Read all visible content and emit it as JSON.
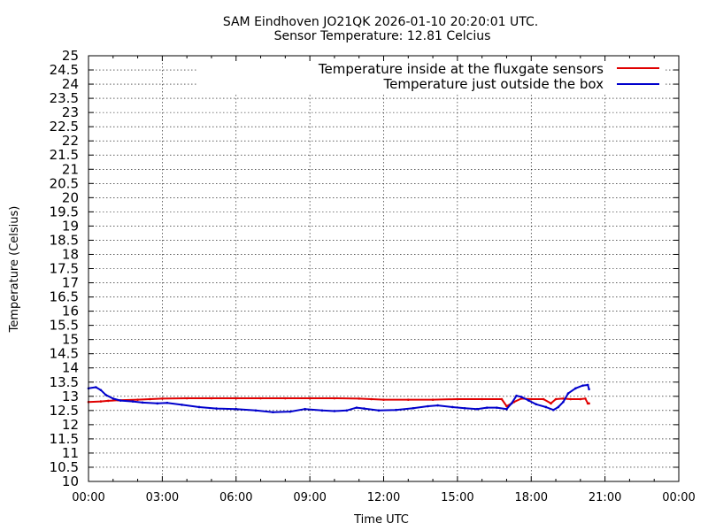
{
  "chart_data": {
    "type": "line",
    "title": "SAM Eindhoven JO21QK 2026-01-10 20:20:01 UTC.",
    "subtitle": "Sensor Temperature: 12.81 Celcius",
    "xlabel": "Time UTC",
    "ylabel": "Temperature (Celsius)",
    "x_unit": "hours",
    "xlim": [
      0,
      24
    ],
    "ylim": [
      10,
      25
    ],
    "grid": true,
    "legend_position": "top-right",
    "x_ticks": [
      "00:00",
      "03:00",
      "06:00",
      "09:00",
      "12:00",
      "15:00",
      "18:00",
      "21:00",
      "00:00"
    ],
    "y_ticks": [
      "10",
      "10.5",
      "11",
      "11.5",
      "12",
      "12.5",
      "13",
      "13.5",
      "14",
      "14.5",
      "15",
      "15.5",
      "16",
      "16.5",
      "17",
      "17.5",
      "18",
      "18.5",
      "19",
      "19.5",
      "20",
      "20.5",
      "21",
      "21.5",
      "22",
      "22.5",
      "23",
      "23.5",
      "24",
      "24.5",
      "25"
    ],
    "series": [
      {
        "name": "Temperature inside at the fluxgate sensors",
        "color": "#e00000",
        "x": [
          0.0,
          0.5,
          0.8,
          1.2,
          2.0,
          2.5,
          3.0,
          4.0,
          5.0,
          6.0,
          7.0,
          8.0,
          9.0,
          10.0,
          11.0,
          11.5,
          12.0,
          13.0,
          14.0,
          15.0,
          16.0,
          16.8,
          17.0,
          17.3,
          17.6,
          18.0,
          18.5,
          18.8,
          19.0,
          19.3,
          19.6,
          20.0,
          20.2,
          20.3,
          20.35
        ],
        "values": [
          12.8,
          12.82,
          12.84,
          12.86,
          12.88,
          12.9,
          12.92,
          12.93,
          12.93,
          12.93,
          12.93,
          12.93,
          12.93,
          12.93,
          12.92,
          12.9,
          12.88,
          12.88,
          12.88,
          12.9,
          12.9,
          12.9,
          12.65,
          12.8,
          12.92,
          12.9,
          12.9,
          12.75,
          12.9,
          12.92,
          12.9,
          12.9,
          12.92,
          12.75,
          12.75
        ]
      },
      {
        "name": "Temperature just outside the box",
        "color": "#0000cc",
        "x": [
          0.0,
          0.3,
          0.5,
          0.7,
          1.0,
          1.3,
          1.8,
          2.2,
          2.8,
          3.2,
          3.8,
          4.5,
          5.2,
          6.0,
          6.8,
          7.5,
          8.2,
          8.8,
          9.5,
          10.0,
          10.5,
          10.9,
          11.2,
          11.8,
          12.5,
          13.2,
          13.8,
          14.2,
          14.8,
          15.3,
          15.8,
          16.2,
          16.6,
          17.0,
          17.2,
          17.4,
          17.6,
          17.9,
          18.2,
          18.6,
          18.9,
          19.1,
          19.3,
          19.5,
          19.8,
          20.1,
          20.3,
          20.35
        ],
        "values": [
          13.28,
          13.32,
          13.22,
          13.05,
          12.92,
          12.85,
          12.82,
          12.78,
          12.75,
          12.77,
          12.7,
          12.62,
          12.57,
          12.55,
          12.5,
          12.44,
          12.46,
          12.55,
          12.5,
          12.48,
          12.5,
          12.6,
          12.57,
          12.5,
          12.52,
          12.58,
          12.65,
          12.68,
          12.62,
          12.58,
          12.55,
          12.6,
          12.6,
          12.55,
          12.75,
          13.02,
          12.98,
          12.85,
          12.72,
          12.62,
          12.52,
          12.62,
          12.8,
          13.1,
          13.28,
          13.38,
          13.4,
          13.25
        ]
      }
    ]
  }
}
